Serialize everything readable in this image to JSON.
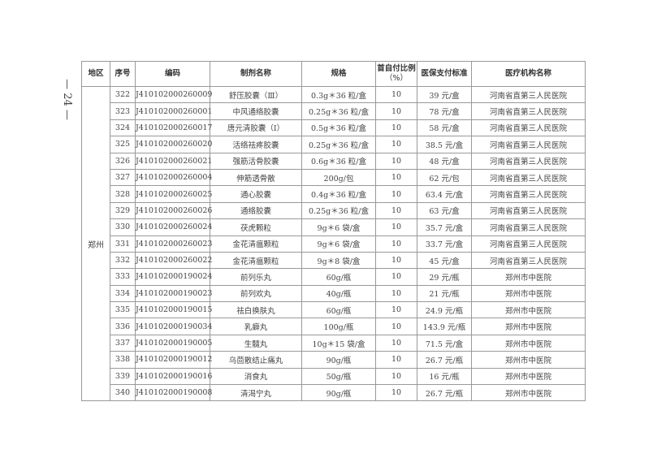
{
  "page_number": "— 24 —",
  "table": {
    "headers": [
      "地区",
      "序号",
      "编码",
      "制剂名称",
      "规格",
      "首自付比例（%）",
      "医保支付标准",
      "医疗机构名称"
    ],
    "header_ratio_line1": "首自付比例",
    "header_ratio_line2": "（%）",
    "region": "郑州",
    "rows": [
      [
        "322",
        "J410102000260009",
        "舒压胶囊（Ⅲ）",
        "0.3g＊36 粒/盒",
        "10",
        "39 元/盒",
        "河南省直第三人民医院"
      ],
      [
        "323",
        "J410102000260001",
        "中风通络胶囊",
        "0.25g＊36 粒/盒",
        "10",
        "78 元/盒",
        "河南省直第三人民医院"
      ],
      [
        "324",
        "J410102000260017",
        "唐元清胶囊（Ⅰ）",
        "0.5g＊36 粒/盒",
        "10",
        "58 元/盒",
        "河南省直第三人民医院"
      ],
      [
        "325",
        "J410102000260020",
        "活络祛疼胶囊",
        "0.25g＊36 粒/盒",
        "10",
        "38.5 元/盒",
        "河南省直第三人民医院"
      ],
      [
        "326",
        "J410102000260021",
        "强筋活骨胶囊",
        "0.6g＊36 粒/盒",
        "10",
        "48 元/盒",
        "河南省直第三人民医院"
      ],
      [
        "327",
        "J410102000260004",
        "伸筋透骨散",
        "200g/包",
        "10",
        "62 元/包",
        "河南省直第三人民医院"
      ],
      [
        "328",
        "J410102000260025",
        "通心胶囊",
        "0.4g＊36 粒/盒",
        "10",
        "63.4 元/盒",
        "河南省直第三人民医院"
      ],
      [
        "329",
        "J410102000260026",
        "通络胶囊",
        "0.25g＊36 粒/盒",
        "10",
        "63 元/盒",
        "河南省直第三人民医院"
      ],
      [
        "330",
        "J410102000260024",
        "茯虎颗粒",
        "9g＊6 袋/盒",
        "10",
        "35.7 元/盒",
        "河南省直第三人民医院"
      ],
      [
        "331",
        "J410102000260023",
        "金花清瘟颗粒",
        "9g＊6 袋/盒",
        "10",
        "33.7 元/盒",
        "河南省直第三人民医院"
      ],
      [
        "332",
        "J410102000260022",
        "金花清瘟颗粒",
        "9g＊8 袋/盒",
        "10",
        "45 元/盒",
        "河南省直第三人民医院"
      ],
      [
        "333",
        "J410102000190024",
        "前列乐丸",
        "60g/瓶",
        "10",
        "29 元/瓶",
        "郑州市中医院"
      ],
      [
        "334",
        "J410102000190023",
        "前列欢丸",
        "40g/瓶",
        "10",
        "21 元/瓶",
        "郑州市中医院"
      ],
      [
        "335",
        "J410102000190015",
        "祛白换肤丸",
        "60g/瓶",
        "10",
        "24.9 元/瓶",
        "郑州市中医院"
      ],
      [
        "336",
        "J410102000190034",
        "乳癖丸",
        "100g/瓶",
        "10",
        "143.9 元/瓶",
        "郑州市中医院"
      ],
      [
        "337",
        "J410102000190005",
        "生髓丸",
        "10g＊15 袋/盒",
        "10",
        "71.5 元/盒",
        "郑州市中医院"
      ],
      [
        "338",
        "J410102000190012",
        "乌茴散结止痛丸",
        "90g/瓶",
        "10",
        "26.7 元/瓶",
        "郑州市中医院"
      ],
      [
        "339",
        "J410102000190016",
        "消食丸",
        "50g/瓶",
        "10",
        "16 元/瓶",
        "郑州市中医院"
      ],
      [
        "340",
        "J410102000190008",
        "清渴宁丸",
        "90g/瓶",
        "10",
        "26.7 元/瓶",
        "郑州市中医院"
      ]
    ]
  }
}
